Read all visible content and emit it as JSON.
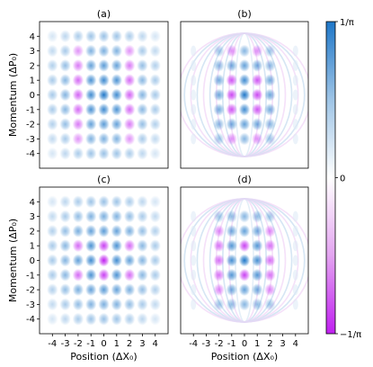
{
  "chart_data": {
    "type": "heatmap",
    "panels": [
      {
        "id": "a",
        "title": "(a)",
        "kind": "lattice",
        "columns": [
          -4,
          -3,
          -2,
          -1,
          0,
          1,
          2,
          3,
          4
        ],
        "rows": [
          -4,
          -3,
          -2,
          -1,
          0,
          1,
          2,
          3,
          4
        ],
        "column_sign": {
          "-4": 1,
          "-3": 1,
          "-2": -1,
          "-1": 1,
          "0": 1,
          "1": 1,
          "2": -1,
          "3": 1,
          "4": 1
        },
        "note": "blue lobes on all columns, magenta on columns -2 and 2 near center"
      },
      {
        "id": "b",
        "title": "(b)",
        "kind": "lattice_with_fringes",
        "columns": [
          -2,
          -1,
          0,
          1,
          2
        ],
        "rows": [
          -3,
          -2,
          -1,
          0,
          1,
          2,
          3
        ]
      },
      {
        "id": "c",
        "title": "(c)",
        "kind": "lattice",
        "columns": [
          -4,
          -3,
          -2,
          -1,
          0,
          1,
          2,
          3,
          4
        ],
        "rows": [
          -4,
          -3,
          -2,
          -1,
          0,
          1,
          2,
          3,
          4
        ],
        "note": "center column 0 has magenta lobes at rows -1,0,1"
      },
      {
        "id": "d",
        "title": "(d)",
        "kind": "lattice_with_fringes",
        "columns": [
          -2,
          -1,
          0,
          1,
          2
        ],
        "rows": [
          -3,
          -2,
          -1,
          0,
          1,
          2,
          3
        ]
      }
    ],
    "xlabel": "Position (ΔX₀)",
    "ylabel": "Momentum (ΔP₀)",
    "xticks": [
      "-4",
      "-3",
      "-2",
      "-1",
      "0",
      "1",
      "2",
      "3",
      "4"
    ],
    "yticks": [
      "4",
      "3",
      "2",
      "1",
      "0",
      "-1",
      "-2",
      "-3",
      "-4"
    ],
    "xlim": [
      -5,
      5
    ],
    "ylim": [
      -5,
      5
    ],
    "colorbar": {
      "ticks": [
        "1/π",
        "0",
        "−1/π"
      ],
      "colors": {
        "positive": "#1f77c8",
        "zero": "#ffffff",
        "negative": "#c020f0"
      }
    }
  }
}
